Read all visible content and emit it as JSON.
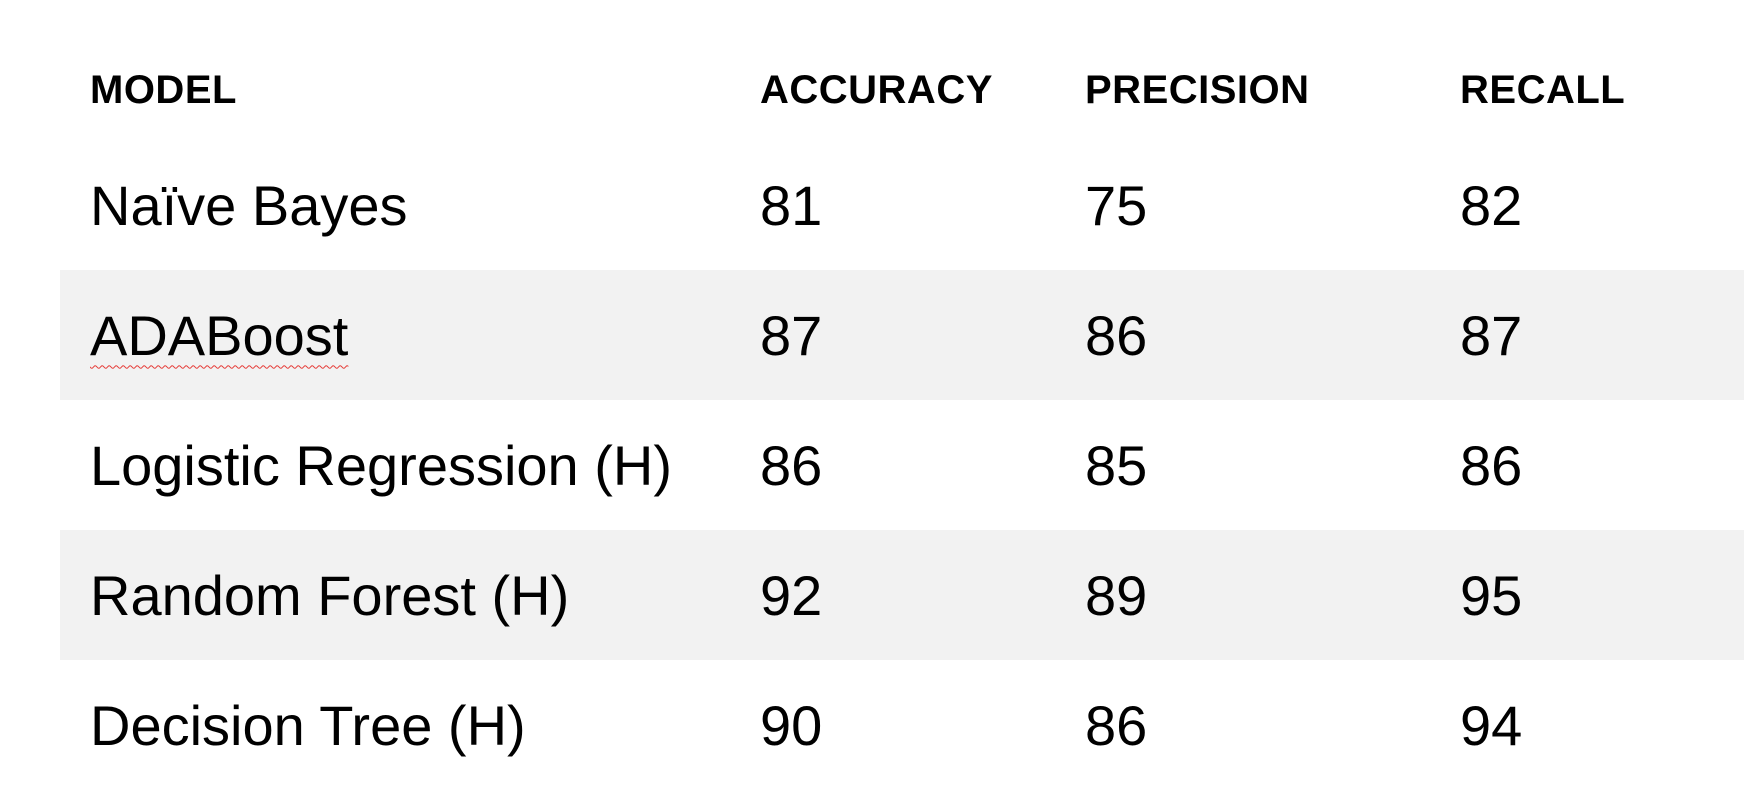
{
  "table": {
    "headers": [
      "MODEL",
      "ACCURACY",
      "PRECISION",
      "RECALL"
    ],
    "rows": [
      {
        "model": "Naïve Bayes",
        "accuracy": "81",
        "precision": "75",
        "recall": "82"
      },
      {
        "model": "ADABoost",
        "accuracy": "87",
        "precision": "86",
        "recall": "87"
      },
      {
        "model": "Logistic Regression (H)",
        "accuracy": "86",
        "precision": "85",
        "recall": "86"
      },
      {
        "model": "Random Forest (H)",
        "accuracy": "92",
        "precision": "89",
        "recall": "95"
      },
      {
        "model": "Decision Tree (H)",
        "accuracy": "90",
        "precision": "86",
        "recall": "94"
      }
    ]
  },
  "colors": {
    "shaded_row": "#f2f2f2",
    "spellcheck_underline": "#e53935"
  }
}
